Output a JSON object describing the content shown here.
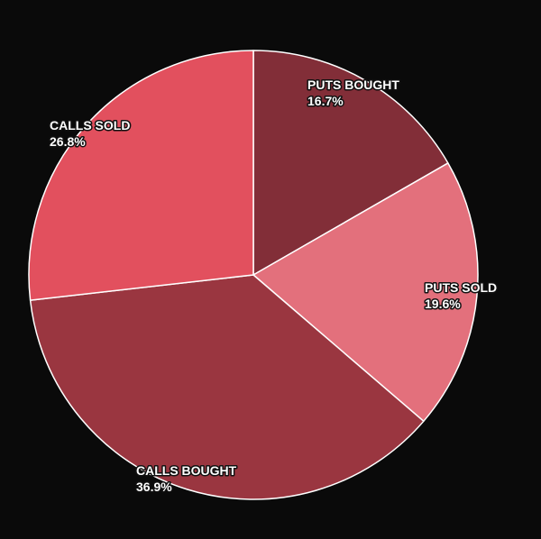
{
  "chart_data": {
    "type": "pie",
    "start": "top",
    "direction": "clockwise",
    "slices": [
      {
        "label": "PUTS BOUGHT",
        "value": 16.7,
        "display": "16.7%",
        "color": "#822e38"
      },
      {
        "label": "PUTS SOLD",
        "value": 19.6,
        "display": "19.6%",
        "color": "#e3707c"
      },
      {
        "label": "CALLS BOUGHT",
        "value": 36.9,
        "display": "36.9%",
        "color": "#9a3640"
      },
      {
        "label": "CALLS SOLD",
        "value": 26.8,
        "display": "26.8%",
        "color": "#e2505e"
      }
    ],
    "background": "#0a0a0a",
    "slice_border": "#ffffff"
  }
}
